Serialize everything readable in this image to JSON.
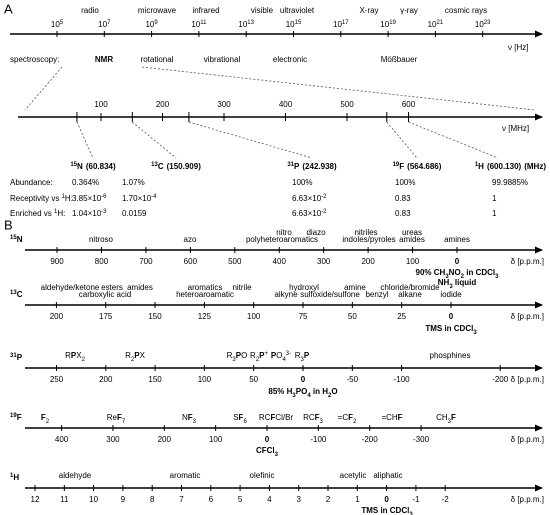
{
  "panel_a": {
    "label": "A",
    "frequency_axis": {
      "unit": "ν [Hz]",
      "ticks": [
        {
          "base": "10",
          "exp": "5"
        },
        {
          "base": "10",
          "exp": "7"
        },
        {
          "base": "10",
          "exp": "9"
        },
        {
          "base": "10",
          "exp": "11"
        },
        {
          "base": "10",
          "exp": "13"
        },
        {
          "base": "10",
          "exp": "15"
        },
        {
          "base": "10",
          "exp": "17"
        },
        {
          "base": "10",
          "exp": "19"
        },
        {
          "base": "10",
          "exp": "21"
        },
        {
          "base": "10",
          "exp": "23"
        }
      ],
      "regions": [
        "radio",
        "microwave",
        "infrared",
        "visible",
        "ultraviolet",
        "X-ray",
        "γ-ray",
        "cosmic rays"
      ]
    },
    "spectroscopy": {
      "label": "spectroscopy:",
      "items": [
        "NMR",
        "rotational",
        "vibrational",
        "electronic",
        "Mößbauer"
      ]
    },
    "mhz_axis": {
      "unit": "ν [MHz]",
      "ticks": [
        100,
        200,
        300,
        400,
        500,
        600
      ]
    },
    "nuclei": [
      {
        "mass": "15",
        "symbol": "N",
        "freq": 60.834,
        "freq_label": "(60.834)"
      },
      {
        "mass": "13",
        "symbol": "C",
        "freq": 150.909,
        "freq_label": "(150.909)"
      },
      {
        "mass": "31",
        "symbol": "P",
        "freq": 242.938,
        "freq_label": "(242.938)"
      },
      {
        "mass": "19",
        "symbol": "F",
        "freq": 564.686,
        "freq_label": "(564.686)"
      },
      {
        "mass": "1",
        "symbol": "H",
        "freq": 600.13,
        "freq_label": "(600.130)"
      }
    ],
    "unit_label": "(MHz)",
    "table": {
      "rows": [
        {
          "label": [
            "Abundance:"
          ],
          "cells": [
            [
              "0.364%"
            ],
            [
              "1.07%"
            ],
            [
              "100%"
            ],
            [
              "100%"
            ],
            [
              "99.9885%"
            ]
          ]
        },
        {
          "label": [
            "Receptivity vs ",
            {
              "t": "1",
              "s": "sup"
            },
            "H:"
          ],
          "cells": [
            [
              "3.85×10",
              {
                "t": "-6",
                "s": "sup"
              }
            ],
            [
              "1.70×10",
              {
                "t": "-4",
                "s": "sup"
              }
            ],
            [
              "6.63×10",
              {
                "t": "-2",
                "s": "sup"
              }
            ],
            [
              "0.83"
            ],
            [
              "1"
            ]
          ]
        },
        {
          "label": [
            "Enriched vs ",
            {
              "t": "1",
              "s": "sup"
            },
            "H:"
          ],
          "cells": [
            [
              "1.04×10",
              {
                "t": "-3",
                "s": "sup"
              }
            ],
            [
              "0.0159"
            ],
            [
              "6.63×10",
              {
                "t": "-2",
                "s": "sup"
              }
            ],
            [
              "0.83"
            ],
            [
              "1"
            ]
          ]
        }
      ]
    }
  },
  "panel_b": {
    "label": "B",
    "unit": "δ [p.p.m.]",
    "scales": [
      {
        "name": [
          {
            "t": "15",
            "s": "sup"
          },
          "N"
        ],
        "ticks": [
          900,
          800,
          700,
          600,
          500,
          400,
          300,
          200,
          100,
          0
        ],
        "annotations": [
          [
            "nitroso"
          ],
          [
            "azo"
          ],
          [
            "nitro"
          ],
          [
            "diazo"
          ],
          [
            "polyheteroaromatics"
          ],
          [
            "nitriles"
          ],
          [
            "ureas"
          ],
          [
            "indoles/pyroles"
          ],
          [
            "amides"
          ],
          [
            "amines"
          ]
        ],
        "references": [
          [
            "90% CH",
            {
              "t": "3",
              "s": "sub"
            },
            "NO",
            {
              "t": "2",
              "s": "sub"
            },
            " in CDCl",
            {
              "t": "3",
              "s": "sub"
            }
          ],
          [
            "NH",
            {
              "t": "3",
              "s": "sub"
            },
            " liquid"
          ]
        ]
      },
      {
        "name": [
          {
            "t": "13",
            "s": "sup"
          },
          "C"
        ],
        "ticks": [
          200,
          175,
          150,
          125,
          100,
          75,
          50,
          25,
          0
        ],
        "annotations": [
          [
            "aldehyde/ketone"
          ],
          [
            "esters"
          ],
          [
            "amides"
          ],
          [
            "carboxylic acid"
          ],
          [
            "aromatics"
          ],
          [
            "heteroaroamatic"
          ],
          [
            "nitrile"
          ],
          [
            "hydroxyl"
          ],
          [
            "alkyne"
          ],
          [
            "sulfoxide/sulfone"
          ],
          [
            "amine"
          ],
          [
            "benzyl"
          ],
          [
            "chloride/bromide"
          ],
          [
            "alkane"
          ],
          [
            "iodide"
          ]
        ],
        "references": [
          [
            "TMS in CDCl",
            {
              "t": "3",
              "s": "sub"
            }
          ]
        ]
      },
      {
        "name": [
          {
            "t": "31",
            "s": "sup"
          },
          "P"
        ],
        "ticks": [
          250,
          200,
          150,
          100,
          50,
          0,
          -50,
          -100,
          -200
        ],
        "annotations": [
          [
            "R",
            {
              "t": "P",
              "s": "b"
            },
            "X",
            {
              "t": "2",
              "s": "sub"
            }
          ],
          [
            "R",
            {
              "t": "2",
              "s": "sub"
            },
            {
              "t": "P",
              "s": "b"
            },
            "X"
          ],
          [
            "R",
            {
              "t": "3",
              "s": "sub"
            },
            {
              "t": "P",
              "s": "b"
            },
            "O"
          ],
          [
            "R",
            {
              "t": "2",
              "s": "sub"
            },
            {
              "t": "P",
              "s": "b"
            },
            {
              "t": "+",
              "s": "sup"
            }
          ],
          [
            {
              "t": "P",
              "s": "b"
            },
            "O",
            {
              "t": "4",
              "s": "sub"
            },
            {
              "t": "3-",
              "s": "sup"
            }
          ],
          [
            "R",
            {
              "t": "3",
              "s": "sub"
            },
            {
              "t": "P",
              "s": "b"
            }
          ],
          [
            "phosphines"
          ]
        ],
        "references": [
          [
            "85% H",
            {
              "t": "3",
              "s": "sub"
            },
            "PO",
            {
              "t": "4",
              "s": "sub"
            },
            " in H",
            {
              "t": "2",
              "s": "sub"
            },
            "O"
          ]
        ]
      },
      {
        "name": [
          {
            "t": "19",
            "s": "sup"
          },
          "F"
        ],
        "ticks": [
          400,
          300,
          200,
          100,
          0,
          -100,
          -200,
          -300
        ],
        "annotations": [
          [
            {
              "t": "F",
              "s": "b"
            },
            {
              "t": "2",
              "s": "sub"
            }
          ],
          [
            "Re",
            {
              "t": "F",
              "s": "b"
            },
            {
              "t": "7",
              "s": "sub"
            }
          ],
          [
            "N",
            {
              "t": "F",
              "s": "b"
            },
            {
              "t": "3",
              "s": "sub"
            }
          ],
          [
            "S",
            {
              "t": "F",
              "s": "b"
            },
            {
              "t": "6",
              "s": "sub"
            }
          ],
          [
            "RC",
            {
              "t": "F",
              "s": "b"
            },
            "Cl/Br"
          ],
          [
            "RC",
            {
              "t": "F",
              "s": "b"
            },
            {
              "t": "3",
              "s": "sub"
            }
          ],
          [
            "=C",
            {
              "t": "F",
              "s": "b"
            },
            {
              "t": "2",
              "s": "sub"
            }
          ],
          [
            "=CH",
            {
              "t": "F",
              "s": "b"
            }
          ],
          [
            "CH",
            {
              "t": "3",
              "s": "sub"
            },
            {
              "t": "F",
              "s": "b"
            }
          ]
        ],
        "references": [
          [
            "C",
            {
              "t": "F",
              "s": "b"
            },
            "Cl",
            {
              "t": "3",
              "s": "sub"
            }
          ]
        ]
      },
      {
        "name": [
          {
            "t": "1",
            "s": "sup"
          },
          "H"
        ],
        "ticks": [
          12,
          11,
          10,
          9,
          8,
          7,
          6,
          5,
          4,
          3,
          2,
          1,
          0,
          -1,
          -2
        ],
        "annotations": [
          [
            "aldehyde"
          ],
          [
            "aromatic"
          ],
          [
            "olefinic"
          ],
          [
            "acetylic"
          ],
          [
            "aliphatic"
          ]
        ],
        "references": [
          [
            "TMS in CDCl",
            {
              "t": "3",
              "s": "sub"
            }
          ]
        ]
      }
    ]
  }
}
